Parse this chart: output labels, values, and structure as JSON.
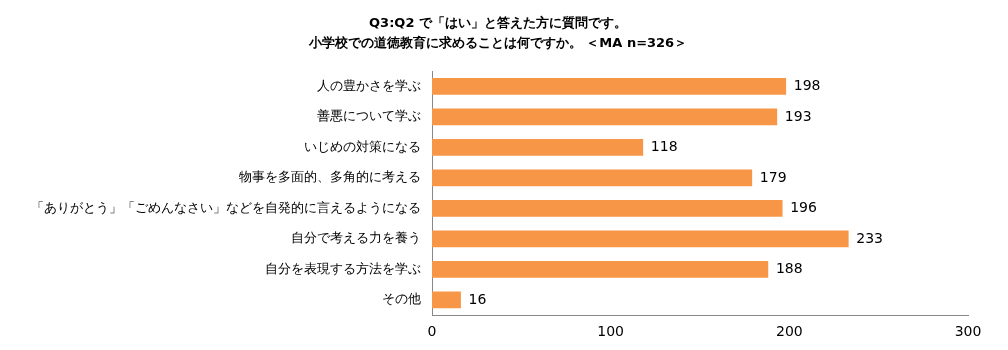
{
  "chart_data": {
    "type": "bar",
    "orientation": "horizontal",
    "title": "Q3:Q2 で「はい」と答えた方に質問です。",
    "subtitle": "小学校での道徳教育に求めることは何ですか。 ＜MA n=326＞",
    "categories": [
      "人の豊かさを学ぶ",
      "善悪について学ぶ",
      "いじめの対策になる",
      "物事を多面的、多角的に考える",
      "「ありがとう」「ごめんなさい」などを自発的に言えるようになる",
      "自分で考える力を養う",
      "自分を表現する方法を学ぶ",
      "その他"
    ],
    "values": [
      198,
      193,
      118,
      179,
      196,
      233,
      188,
      16
    ],
    "color": "#f79646",
    "xlim": [
      0,
      300
    ],
    "xticks": [
      0,
      100,
      200,
      300
    ],
    "grid": false,
    "data_labels": true,
    "legend": false
  }
}
